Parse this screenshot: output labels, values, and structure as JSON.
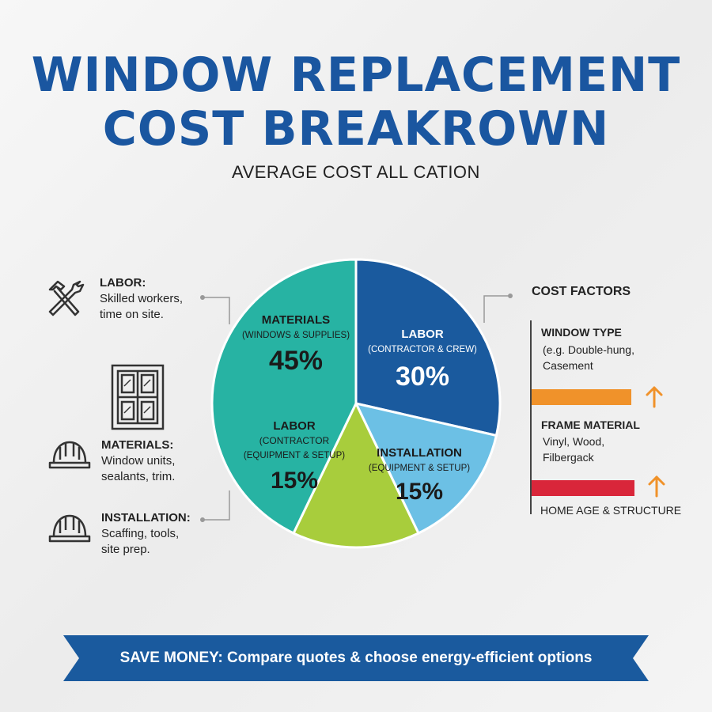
{
  "title_line1": "WINDOW REPLACEMENT",
  "title_line2": "COST BREAKROWN",
  "subtitle": "AVERAGE COST ALL CATION",
  "left_items": [
    {
      "label": "LABOR:",
      "desc1": "Skilled workers,",
      "desc2": "time on site.",
      "icon": "tools-icon"
    },
    {
      "label": "MATERIALS:",
      "desc1": "Window units,",
      "desc2": "sealants, trim.",
      "icon": "hard-hat-icon"
    },
    {
      "label": "INSTALLATION:",
      "desc1": "Scaffing, tools,",
      "desc2": "site prep.",
      "icon": "hard-hat-icon"
    }
  ],
  "window_icon": "window-icon",
  "chart_data": {
    "type": "pie",
    "slices": [
      {
        "label": "MATERIALS",
        "sublabel": "(WINDOWS & SUPPLIES)",
        "pct_label": "45%",
        "value": 45,
        "color": "#27b3a3"
      },
      {
        "label": "LABOR",
        "sublabel": "(CONTRACTOR & CREW)",
        "pct_label": "30%",
        "value": 30,
        "color": "#1a5a9e"
      },
      {
        "label": "INSTALLATION",
        "sublabel": "(EQUIPMENT & SETUP)",
        "pct_label": "15%",
        "value": 15,
        "color": "#6cc0e5"
      },
      {
        "label": "LABOR",
        "sublabel1": "(CONTRACTOR",
        "sublabel2": "(EQUIPMENT & SETUP)",
        "pct_label": "15%",
        "value": 15,
        "color": "#a8cd3c"
      }
    ]
  },
  "cost_factors": {
    "title": "COST FACTORS",
    "items": [
      {
        "label": "WINDOW TYPE",
        "desc1": "(e.g. Double-hung,",
        "desc2": "Casement",
        "bar_color": "#f0922a",
        "arrow_color": "#f0922a"
      },
      {
        "label": "FRAME MATERIAL",
        "desc1": "Vinyl, Wood,",
        "desc2": "Filbergack",
        "bar_color": "#d9263a",
        "arrow_color": "#f0922a"
      }
    ],
    "last_label": "HOME AGE & STRUCTURE"
  },
  "banner_text": "SAVE MONEY: Compare quotes & choose energy-efficient options",
  "colors": {
    "title": "#1a56a0",
    "banner": "#1a5a9e"
  }
}
